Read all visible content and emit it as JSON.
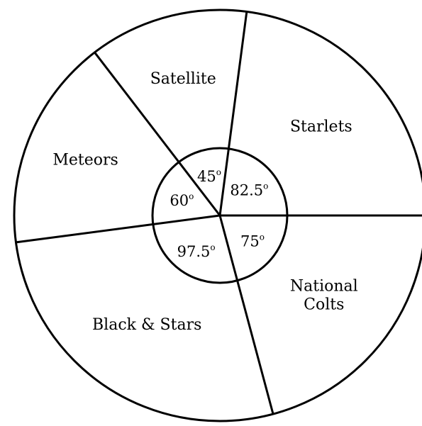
{
  "chart_data": {
    "type": "pie",
    "unit": "degrees",
    "slices": [
      {
        "label_lines": [
          "Starlets"
        ],
        "value": 82.5,
        "value_label": "82.5",
        "degree_symbol": "o"
      },
      {
        "label_lines": [
          "Satellite"
        ],
        "value": 45,
        "value_label": "45",
        "degree_symbol": "o"
      },
      {
        "label_lines": [
          "Meteors"
        ],
        "value": 60,
        "value_label": "60",
        "degree_symbol": "o"
      },
      {
        "label_lines": [
          "Black & Stars"
        ],
        "value": 97.5,
        "value_label": "97.5",
        "degree_symbol": "o"
      },
      {
        "label_lines": [
          "National",
          "Colts"
        ],
        "value": 75,
        "value_label": "75",
        "degree_symbol": "o"
      }
    ],
    "start_angle_deg": 0,
    "direction": "counterclockwise",
    "colors": {
      "stroke": "#000000",
      "fill": "#ffffff"
    }
  }
}
